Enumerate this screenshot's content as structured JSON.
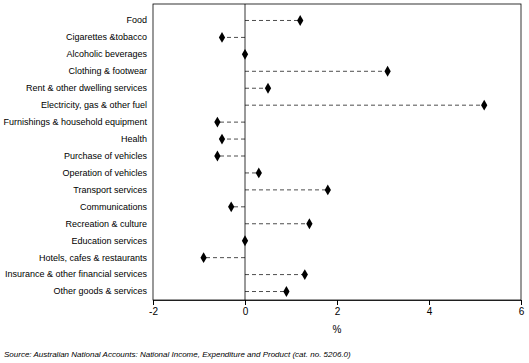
{
  "chart_data": {
    "type": "dot",
    "orientation": "horizontal",
    "categories": [
      "Food",
      "Cigarettes &tobacco",
      "Alcoholic beverages",
      "Clothing & footwear",
      "Rent & other dwelling services",
      "Electricity, gas & other fuel",
      "Furnishings & household equipment",
      "Health",
      "Purchase of vehicles",
      "Operation of vehicles",
      "Transport services",
      "Communications",
      "Recreation & culture",
      "Education services",
      "Hotels, cafes & restaurants",
      "Insurance & other financial services",
      "Other goods & services"
    ],
    "values": [
      1.2,
      -0.5,
      0.0,
      3.1,
      0.5,
      5.2,
      -0.6,
      -0.5,
      -0.6,
      0.3,
      1.8,
      -0.3,
      1.4,
      0.0,
      -0.9,
      1.3,
      0.9
    ],
    "color": "#000000",
    "marker": "diamond",
    "line_style": "dashed",
    "x_label": "%",
    "xlim": [
      -2,
      6
    ],
    "xticks": [
      -2,
      0,
      2,
      4,
      6
    ],
    "annotations": [
      "Source: Australian National Accounts: National Income, Expenditure and Product (cat. no. 5206.0)"
    ]
  }
}
